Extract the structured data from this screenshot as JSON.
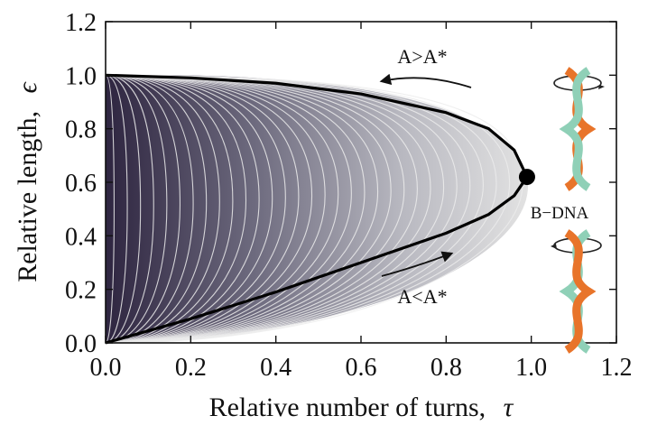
{
  "chart_data": {
    "type": "line",
    "xlabel": "Relative number of turns,",
    "xlabel_symbol": "τ",
    "ylabel": "Relative length,",
    "ylabel_symbol": "ϵ",
    "xlim": [
      0.0,
      1.2
    ],
    "ylim": [
      0.0,
      1.2
    ],
    "x_ticks": [
      "0.0",
      "0.2",
      "0.4",
      "0.6",
      "0.8",
      "1.0",
      "1.2"
    ],
    "y_ticks": [
      "0.0",
      "0.2",
      "0.4",
      "0.6",
      "0.8",
      "1.0",
      "1.2"
    ],
    "grid": false,
    "series": [
      {
        "style": "black-upper-boundary",
        "x": [
          0.0,
          0.2,
          0.4,
          0.6,
          0.8,
          0.9,
          0.96,
          0.99
        ],
        "y": [
          1.0,
          0.99,
          0.97,
          0.93,
          0.86,
          0.8,
          0.72,
          0.62
        ]
      },
      {
        "style": "black-lower-boundary",
        "x": [
          0.0,
          0.2,
          0.4,
          0.6,
          0.8,
          0.9,
          0.96,
          0.99
        ],
        "y": [
          0.0,
          0.09,
          0.19,
          0.3,
          0.41,
          0.48,
          0.55,
          0.62
        ]
      }
    ],
    "family_curves": {
      "count": 32,
      "apex_x_min": 0.02,
      "apex_x_max": 0.98,
      "center_y": 0.5,
      "half_height": 0.5
    },
    "point": {
      "label": "B−DNA",
      "x": 0.99,
      "y": 0.62
    },
    "annotations": [
      {
        "text": "A>A*",
        "position": "upper-right",
        "arrow_direction": "left"
      },
      {
        "text": "A<A*",
        "position": "lower-right",
        "arrow_direction": "right"
      }
    ],
    "colors": {
      "fill_dark": "#2e2540",
      "fill_light": "#dcdcdc",
      "curve_line": "#ececec",
      "dna_orange": "#e8742a",
      "dna_green": "#8fd0b7"
    }
  }
}
